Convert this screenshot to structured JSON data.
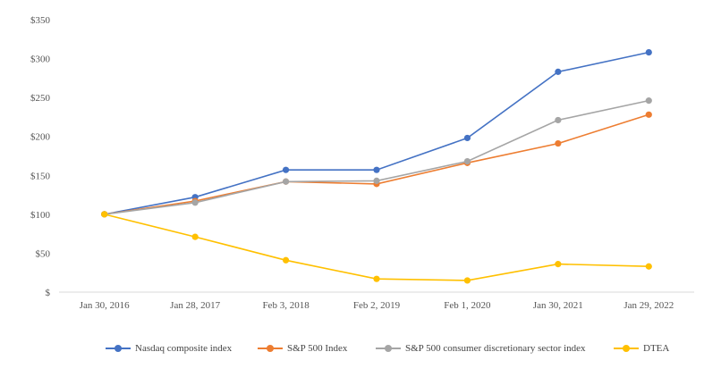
{
  "chart_data": {
    "type": "line",
    "categories": [
      "Jan 30, 2016",
      "Jan 28, 2017",
      "Feb 3, 2018",
      "Feb 2, 2019",
      "Feb 1, 2020",
      "Jan 30, 2021",
      "Jan 29, 2022"
    ],
    "y_ticks": [
      "$",
      "$50",
      "$100",
      "$150",
      "$200",
      "$250",
      "$300",
      "$350"
    ],
    "ylim": [
      0,
      350
    ],
    "grid": false,
    "legend_position": "bottom",
    "series": [
      {
        "name": "Nasdaq composite index",
        "color": "#4472c4",
        "values": [
          100,
          122,
          157,
          157,
          198,
          283,
          308
        ]
      },
      {
        "name": "S&P 500 Index",
        "color": "#ed7d31",
        "values": [
          100,
          117,
          142,
          139,
          166,
          191,
          228
        ]
      },
      {
        "name": "S&P 500 consumer discretionary sector index",
        "color": "#a5a5a5",
        "values": [
          100,
          115,
          142,
          143,
          168,
          221,
          246
        ]
      },
      {
        "name": "DTEA",
        "color": "#ffc000",
        "values": [
          100,
          71,
          41,
          17,
          15,
          36,
          33
        ]
      }
    ]
  }
}
